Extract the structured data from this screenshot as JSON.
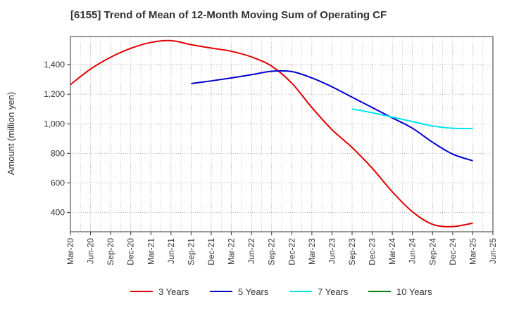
{
  "chart_data": {
    "type": "line",
    "title": "[6155]  Trend of Mean of 12-Month Moving Sum of Operating CF",
    "xlabel": "",
    "ylabel": "Amount (million yen)",
    "ylim": [
      270,
      1590
    ],
    "yticks": [
      400,
      600,
      800,
      1000,
      1200,
      1400
    ],
    "ytick_labels": [
      "400",
      "600",
      "800",
      "1,000",
      "1,200",
      "1,400"
    ],
    "x_labels": [
      "Mar-20",
      "Jun-20",
      "Sep-20",
      "Dec-20",
      "Mar-21",
      "Jun-21",
      "Sep-21",
      "Dec-21",
      "Mar-22",
      "Jun-22",
      "Sep-22",
      "Dec-22",
      "Mar-23",
      "Jun-23",
      "Sep-23",
      "Dec-23",
      "Mar-24",
      "Jun-24",
      "Sep-24",
      "Dec-24",
      "Mar-25",
      "Jun-25"
    ],
    "grid": true,
    "legend_position": "bottom",
    "series": [
      {
        "name": "3 Years",
        "color": "#e00000",
        "start_index": 0,
        "values": [
          1265,
          1370,
          1450,
          1510,
          1550,
          1562,
          1535,
          1512,
          1490,
          1452,
          1390,
          1275,
          1110,
          960,
          840,
          700,
          540,
          405,
          320,
          305,
          328
        ]
      },
      {
        "name": "5 Years",
        "color": "#0000cc",
        "start_index": 6,
        "values": [
          1272,
          1290,
          1310,
          1332,
          1355,
          1353,
          1310,
          1250,
          1180,
          1110,
          1040,
          970,
          875,
          795,
          750
        ]
      },
      {
        "name": "7 Years",
        "color": "#00e5ee",
        "start_index": 14,
        "values": [
          1100,
          1075,
          1045,
          1015,
          985,
          970,
          968
        ]
      },
      {
        "name": "10 Years",
        "color": "#008000",
        "start_index": 0,
        "values": []
      }
    ]
  }
}
